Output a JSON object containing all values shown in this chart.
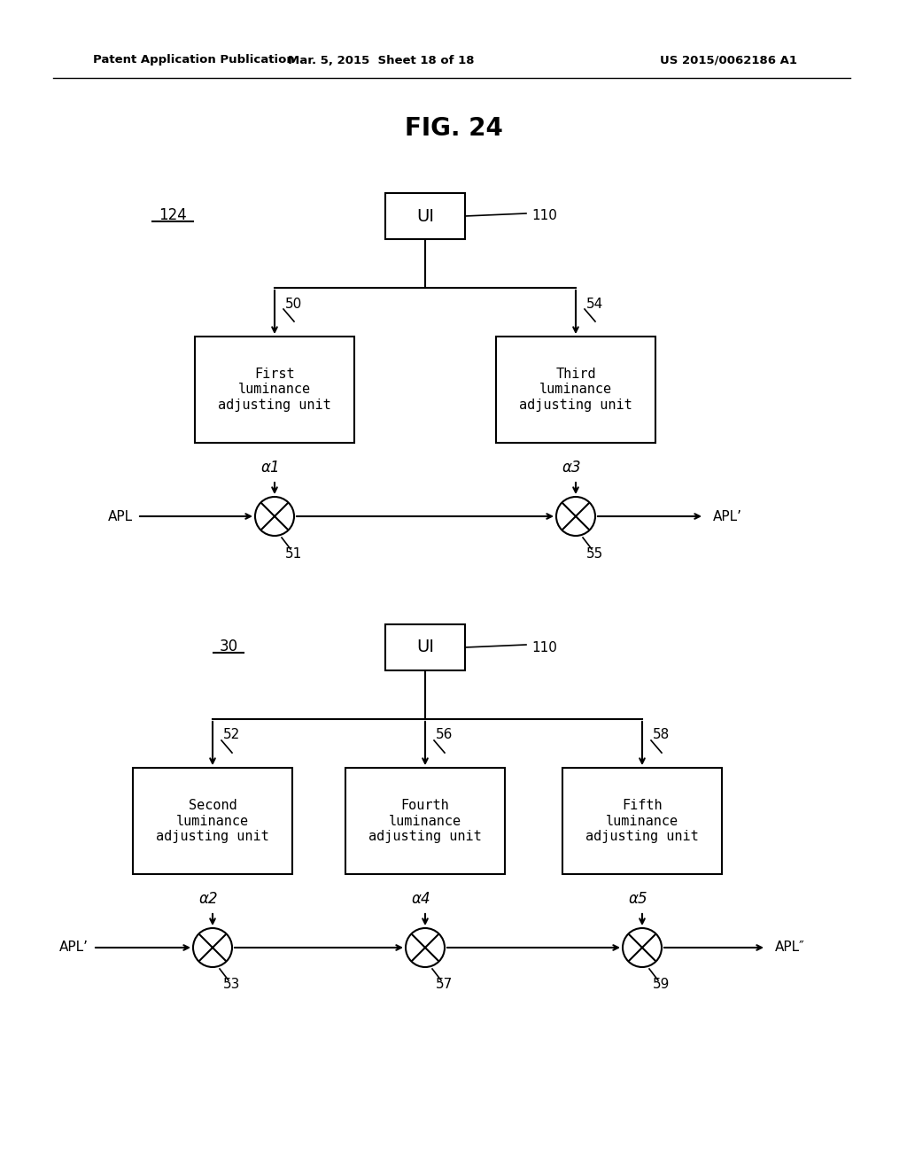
{
  "bg_color": "#ffffff",
  "title": "FIG. 24",
  "header_left": "Patent Application Publication",
  "header_mid": "Mar. 5, 2015  Sheet 18 of 18",
  "header_right": "US 2015/0062186 A1",
  "fig_width": 10.24,
  "fig_height": 13.2,
  "dpi": 100
}
